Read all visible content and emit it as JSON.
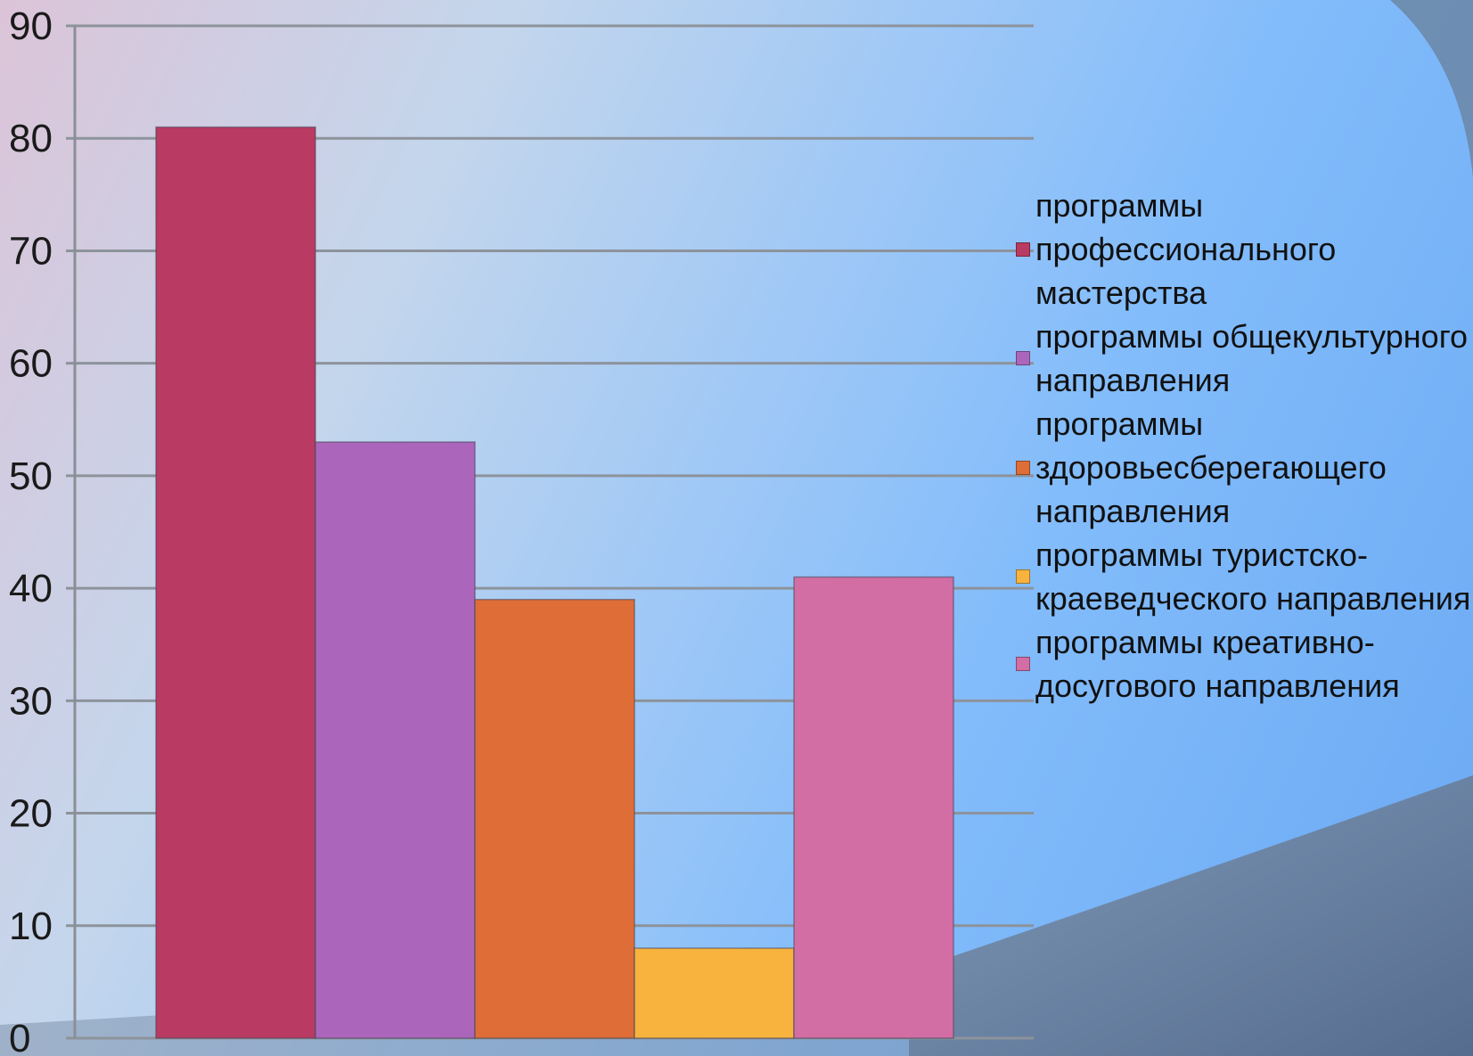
{
  "chart_data": {
    "type": "bar",
    "title": "",
    "xlabel": "",
    "ylabel": "",
    "ylim": [
      0,
      90
    ],
    "yticks": [
      0,
      10,
      20,
      30,
      40,
      50,
      60,
      70,
      80,
      90
    ],
    "grid": true,
    "legend_position": "right",
    "series": [
      {
        "name": "программы профессионального мастерства",
        "value": 81,
        "color": "#b93a62"
      },
      {
        "name": "программы общекультурного направления",
        "value": 53,
        "color": "#ab66bb"
      },
      {
        "name": "программы здоровьесберегающего направления",
        "value": 39,
        "color": "#de6d37"
      },
      {
        "name": "программы туристско-краеведческого направления",
        "value": 8,
        "color": "#f7b33d"
      },
      {
        "name": "программы креативно-досугового направления",
        "value": 41,
        "color": "#d26ea3"
      }
    ]
  }
}
